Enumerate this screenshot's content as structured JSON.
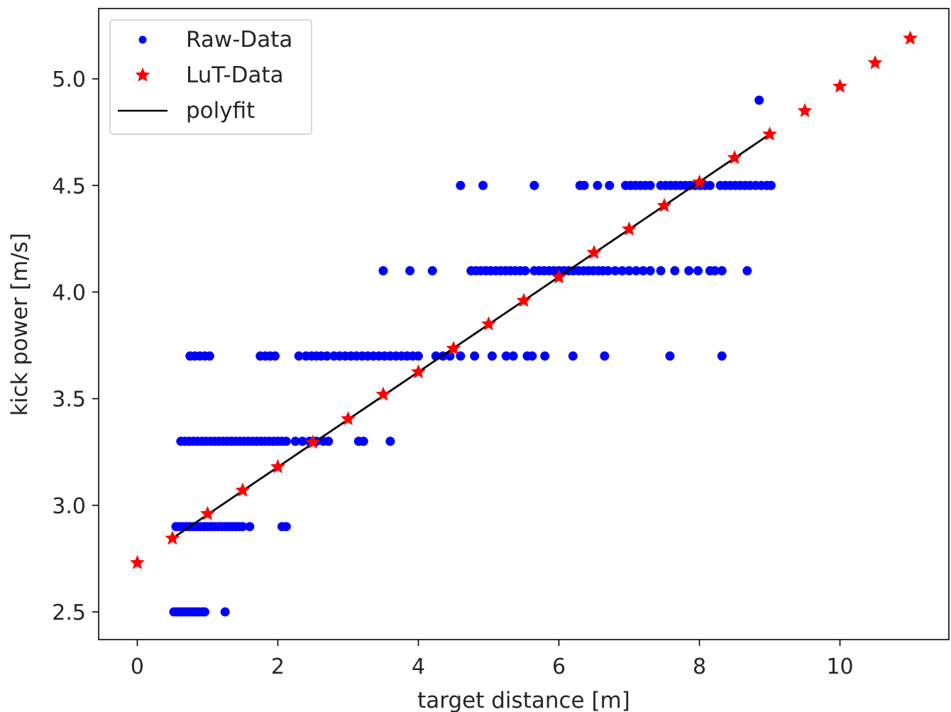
{
  "chart_data": {
    "type": "scatter",
    "xlabel": "target distance [m]",
    "ylabel": "kick power [m/s]",
    "xlim": [
      -0.55,
      11.55
    ],
    "ylim": [
      2.37,
      5.33
    ],
    "xticks": [
      0,
      2,
      4,
      6,
      8,
      10
    ],
    "yticks": [
      2.5,
      3.0,
      3.5,
      4.0,
      4.5,
      5.0
    ],
    "xtick_labels": [
      "0",
      "2",
      "4",
      "6",
      "8",
      "10"
    ],
    "ytick_labels": [
      "2.5",
      "3.0",
      "3.5",
      "4.0",
      "4.5",
      "5.0"
    ],
    "grid": false,
    "legend": {
      "placement": "top-left",
      "entries": [
        "Raw-Data",
        "LuT-Data",
        "polyfit"
      ]
    },
    "colors": {
      "raw": "#0000ff",
      "lut": "#ff0000",
      "fit": "#000000"
    },
    "series": [
      {
        "name": "Raw-Data",
        "marker": "dot",
        "points": [
          [
            0.52,
            2.5
          ],
          [
            0.56,
            2.5
          ],
          [
            0.6,
            2.5
          ],
          [
            0.64,
            2.5
          ],
          [
            0.68,
            2.5
          ],
          [
            0.72,
            2.5
          ],
          [
            0.76,
            2.5
          ],
          [
            0.8,
            2.5
          ],
          [
            0.84,
            2.5
          ],
          [
            0.88,
            2.5
          ],
          [
            0.92,
            2.5
          ],
          [
            0.96,
            2.5
          ],
          [
            1.25,
            2.5
          ],
          [
            0.55,
            2.9
          ],
          [
            0.6,
            2.9
          ],
          [
            0.65,
            2.9
          ],
          [
            0.7,
            2.9
          ],
          [
            0.75,
            2.9
          ],
          [
            0.8,
            2.9
          ],
          [
            0.85,
            2.9
          ],
          [
            0.9,
            2.9
          ],
          [
            0.95,
            2.9
          ],
          [
            1.0,
            2.9
          ],
          [
            1.05,
            2.9
          ],
          [
            1.1,
            2.9
          ],
          [
            1.15,
            2.9
          ],
          [
            1.2,
            2.9
          ],
          [
            1.25,
            2.9
          ],
          [
            1.3,
            2.9
          ],
          [
            1.35,
            2.9
          ],
          [
            1.4,
            2.9
          ],
          [
            1.45,
            2.9
          ],
          [
            1.5,
            2.9
          ],
          [
            1.6,
            2.9
          ],
          [
            2.06,
            2.9
          ],
          [
            2.12,
            2.9
          ],
          [
            0.62,
            3.3
          ],
          [
            0.68,
            3.3
          ],
          [
            0.74,
            3.3
          ],
          [
            0.8,
            3.3
          ],
          [
            0.86,
            3.3
          ],
          [
            0.92,
            3.3
          ],
          [
            0.98,
            3.3
          ],
          [
            1.04,
            3.3
          ],
          [
            1.1,
            3.3
          ],
          [
            1.16,
            3.3
          ],
          [
            1.22,
            3.3
          ],
          [
            1.28,
            3.3
          ],
          [
            1.34,
            3.3
          ],
          [
            1.4,
            3.3
          ],
          [
            1.46,
            3.3
          ],
          [
            1.52,
            3.3
          ],
          [
            1.58,
            3.3
          ],
          [
            1.64,
            3.3
          ],
          [
            1.7,
            3.3
          ],
          [
            1.76,
            3.3
          ],
          [
            1.82,
            3.3
          ],
          [
            1.88,
            3.3
          ],
          [
            1.94,
            3.3
          ],
          [
            2.0,
            3.3
          ],
          [
            2.06,
            3.3
          ],
          [
            2.12,
            3.3
          ],
          [
            2.25,
            3.3
          ],
          [
            2.35,
            3.3
          ],
          [
            2.45,
            3.3
          ],
          [
            2.55,
            3.3
          ],
          [
            2.65,
            3.3
          ],
          [
            2.72,
            3.3
          ],
          [
            3.15,
            3.3
          ],
          [
            3.22,
            3.3
          ],
          [
            3.6,
            3.3
          ],
          [
            0.75,
            3.7
          ],
          [
            0.82,
            3.7
          ],
          [
            0.89,
            3.7
          ],
          [
            0.96,
            3.7
          ],
          [
            1.03,
            3.7
          ],
          [
            1.75,
            3.7
          ],
          [
            1.82,
            3.7
          ],
          [
            1.89,
            3.7
          ],
          [
            1.96,
            3.7
          ],
          [
            2.3,
            3.7
          ],
          [
            2.4,
            3.7
          ],
          [
            2.48,
            3.7
          ],
          [
            2.55,
            3.7
          ],
          [
            2.62,
            3.7
          ],
          [
            2.7,
            3.7
          ],
          [
            2.8,
            3.7
          ],
          [
            2.88,
            3.7
          ],
          [
            2.96,
            3.7
          ],
          [
            3.04,
            3.7
          ],
          [
            3.12,
            3.7
          ],
          [
            3.2,
            3.7
          ],
          [
            3.28,
            3.7
          ],
          [
            3.36,
            3.7
          ],
          [
            3.44,
            3.7
          ],
          [
            3.52,
            3.7
          ],
          [
            3.6,
            3.7
          ],
          [
            3.68,
            3.7
          ],
          [
            3.76,
            3.7
          ],
          [
            3.84,
            3.7
          ],
          [
            3.92,
            3.7
          ],
          [
            4.0,
            3.7
          ],
          [
            4.25,
            3.7
          ],
          [
            4.35,
            3.7
          ],
          [
            4.45,
            3.7
          ],
          [
            4.6,
            3.7
          ],
          [
            4.8,
            3.7
          ],
          [
            5.05,
            3.7
          ],
          [
            5.25,
            3.7
          ],
          [
            5.35,
            3.7
          ],
          [
            5.55,
            3.7
          ],
          [
            5.62,
            3.7
          ],
          [
            5.8,
            3.7
          ],
          [
            6.2,
            3.7
          ],
          [
            6.65,
            3.7
          ],
          [
            7.58,
            3.7
          ],
          [
            8.32,
            3.7
          ],
          [
            3.5,
            4.1
          ],
          [
            3.88,
            4.1
          ],
          [
            4.2,
            4.1
          ],
          [
            4.75,
            4.1
          ],
          [
            4.82,
            4.1
          ],
          [
            4.89,
            4.1
          ],
          [
            4.96,
            4.1
          ],
          [
            5.03,
            4.1
          ],
          [
            5.1,
            4.1
          ],
          [
            5.17,
            4.1
          ],
          [
            5.24,
            4.1
          ],
          [
            5.31,
            4.1
          ],
          [
            5.38,
            4.1
          ],
          [
            5.45,
            4.1
          ],
          [
            5.52,
            4.1
          ],
          [
            5.65,
            4.1
          ],
          [
            5.72,
            4.1
          ],
          [
            5.79,
            4.1
          ],
          [
            5.86,
            4.1
          ],
          [
            5.93,
            4.1
          ],
          [
            6.0,
            4.1
          ],
          [
            6.07,
            4.1
          ],
          [
            6.14,
            4.1
          ],
          [
            6.21,
            4.1
          ],
          [
            6.28,
            4.1
          ],
          [
            6.35,
            4.1
          ],
          [
            6.42,
            4.1
          ],
          [
            6.49,
            4.1
          ],
          [
            6.56,
            4.1
          ],
          [
            6.63,
            4.1
          ],
          [
            6.7,
            4.1
          ],
          [
            6.8,
            4.1
          ],
          [
            6.9,
            4.1
          ],
          [
            7.0,
            4.1
          ],
          [
            7.1,
            4.1
          ],
          [
            7.2,
            4.1
          ],
          [
            7.3,
            4.1
          ],
          [
            7.45,
            4.1
          ],
          [
            7.65,
            4.1
          ],
          [
            7.85,
            4.1
          ],
          [
            7.98,
            4.1
          ],
          [
            8.15,
            4.1
          ],
          [
            8.22,
            4.1
          ],
          [
            8.32,
            4.1
          ],
          [
            8.68,
            4.1
          ],
          [
            4.6,
            4.5
          ],
          [
            4.92,
            4.5
          ],
          [
            5.65,
            4.5
          ],
          [
            6.3,
            4.5
          ],
          [
            6.36,
            4.5
          ],
          [
            6.55,
            4.5
          ],
          [
            6.72,
            4.5
          ],
          [
            6.95,
            4.5
          ],
          [
            7.02,
            4.5
          ],
          [
            7.09,
            4.5
          ],
          [
            7.16,
            4.5
          ],
          [
            7.23,
            4.5
          ],
          [
            7.3,
            4.5
          ],
          [
            7.45,
            4.5
          ],
          [
            7.52,
            4.5
          ],
          [
            7.59,
            4.5
          ],
          [
            7.66,
            4.5
          ],
          [
            7.73,
            4.5
          ],
          [
            7.8,
            4.5
          ],
          [
            7.87,
            4.5
          ],
          [
            7.94,
            4.5
          ],
          [
            8.01,
            4.5
          ],
          [
            8.08,
            4.5
          ],
          [
            8.15,
            4.5
          ],
          [
            8.3,
            4.5
          ],
          [
            8.37,
            4.5
          ],
          [
            8.44,
            4.5
          ],
          [
            8.51,
            4.5
          ],
          [
            8.58,
            4.5
          ],
          [
            8.65,
            4.5
          ],
          [
            8.72,
            4.5
          ],
          [
            8.8,
            4.5
          ],
          [
            8.88,
            4.5
          ],
          [
            8.96,
            4.5
          ],
          [
            9.02,
            4.5
          ],
          [
            8.85,
            4.9
          ]
        ]
      },
      {
        "name": "LuT-Data",
        "marker": "star",
        "points": [
          [
            0,
            2.73
          ],
          [
            0.5,
            2.845
          ],
          [
            1,
            2.96
          ],
          [
            1.5,
            3.07
          ],
          [
            2,
            3.18
          ],
          [
            2.5,
            3.295
          ],
          [
            3,
            3.405
          ],
          [
            3.5,
            3.52
          ],
          [
            4,
            3.625
          ],
          [
            4.5,
            3.735
          ],
          [
            5,
            3.85
          ],
          [
            5.5,
            3.96
          ],
          [
            6,
            4.07
          ],
          [
            6.5,
            4.185
          ],
          [
            7,
            4.295
          ],
          [
            7.5,
            4.405
          ],
          [
            8,
            4.515
          ],
          [
            8.5,
            4.63
          ],
          [
            9,
            4.74
          ],
          [
            9.5,
            4.85
          ],
          [
            10,
            4.965
          ],
          [
            10.5,
            5.075
          ],
          [
            11,
            5.19
          ]
        ]
      },
      {
        "name": "polyfit",
        "marker": "line",
        "points": [
          [
            0.55,
            2.856
          ],
          [
            9.0,
            4.74
          ]
        ]
      }
    ]
  }
}
